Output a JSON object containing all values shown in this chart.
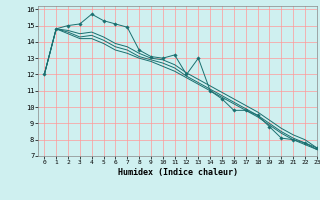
{
  "title": "",
  "xlabel": "Humidex (Indice chaleur)",
  "ylabel": "",
  "bg_color": "#cff0f0",
  "grid_color": "#ff9999",
  "line_color": "#1a7070",
  "xlim": [
    -0.5,
    23
  ],
  "ylim": [
    7,
    16.2
  ],
  "xticks": [
    0,
    1,
    2,
    3,
    4,
    5,
    6,
    7,
    8,
    9,
    10,
    11,
    12,
    13,
    14,
    15,
    16,
    17,
    18,
    19,
    20,
    21,
    22,
    23
  ],
  "yticks": [
    7,
    8,
    9,
    10,
    11,
    12,
    13,
    14,
    15,
    16
  ],
  "series": [
    [
      12.0,
      14.8,
      15.0,
      15.1,
      15.7,
      15.3,
      15.1,
      14.9,
      13.5,
      13.1,
      13.0,
      13.2,
      12.0,
      13.0,
      11.0,
      10.5,
      9.8,
      9.8,
      9.5,
      8.8,
      8.1,
      8.0,
      7.8,
      7.5
    ],
    [
      12.0,
      14.8,
      14.5,
      14.2,
      14.2,
      13.9,
      13.5,
      13.3,
      13.0,
      12.8,
      12.5,
      12.2,
      11.8,
      11.4,
      11.0,
      10.6,
      10.2,
      9.8,
      9.4,
      8.9,
      8.4,
      8.0,
      7.7,
      7.4
    ],
    [
      12.0,
      14.8,
      14.6,
      14.3,
      14.4,
      14.1,
      13.7,
      13.5,
      13.1,
      12.9,
      12.7,
      12.4,
      11.9,
      11.5,
      11.1,
      10.7,
      10.3,
      9.9,
      9.5,
      9.0,
      8.5,
      8.1,
      7.8,
      7.4
    ],
    [
      12.0,
      14.8,
      14.7,
      14.5,
      14.6,
      14.3,
      13.9,
      13.7,
      13.3,
      13.0,
      12.9,
      12.6,
      12.1,
      11.7,
      11.3,
      10.9,
      10.5,
      10.1,
      9.7,
      9.2,
      8.7,
      8.3,
      8.0,
      7.5
    ]
  ]
}
